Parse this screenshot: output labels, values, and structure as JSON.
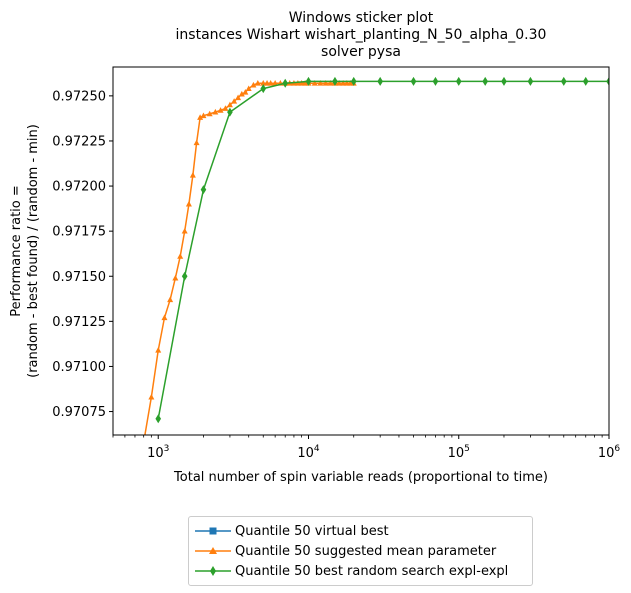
{
  "chart_data": {
    "type": "line",
    "title": [
      "Windows sticker plot",
      "instances Wishart wishart_planting_N_50_alpha_0.30",
      "solver pysa"
    ],
    "xlabel": "Total number of spin variable reads (proportional to time)",
    "ylabel": [
      "Performance ratio =",
      "(random - best found) / (random - min)"
    ],
    "xscale": "log",
    "xlim": [
      500,
      1000000
    ],
    "ylim": [
      0.97062,
      0.97266
    ],
    "x_ticks": [
      {
        "value": 1000,
        "base": "10",
        "exp": "3"
      },
      {
        "value": 10000,
        "base": "10",
        "exp": "4"
      },
      {
        "value": 100000,
        "base": "10",
        "exp": "5"
      },
      {
        "value": 1000000,
        "base": "10",
        "exp": "6"
      }
    ],
    "y_ticks": [
      0.97075,
      0.971,
      0.97125,
      0.9715,
      0.97175,
      0.972,
      0.97225,
      0.9725
    ],
    "y_tick_labels": [
      "0.97075",
      "0.97100",
      "0.97125",
      "0.97150",
      "0.97175",
      "0.97200",
      "0.97225",
      "0.97250"
    ],
    "grid": false,
    "legend_position": "below",
    "series": [
      {
        "name": "Quantile 50 virtual best",
        "color": "#1f77b4",
        "marker": "square",
        "x": [],
        "y": []
      },
      {
        "name": "Quantile 50 suggested mean parameter",
        "color": "#ff7f0e",
        "marker": "triangle",
        "x": [
          800,
          900,
          1000,
          1100,
          1200,
          1300,
          1400,
          1500,
          1600,
          1700,
          1800,
          1900,
          2000,
          2200,
          2400,
          2600,
          2800,
          3000,
          3200,
          3400,
          3600,
          3800,
          4000,
          4300,
          4600,
          5000,
          5300,
          5600,
          6000,
          6500,
          7000,
          7500,
          8000,
          8500,
          9000,
          9500,
          10000,
          11000,
          12000,
          13000,
          14000,
          15000,
          16000,
          17000,
          18000,
          19000,
          20000
        ],
        "y": [
          0.97058,
          0.97083,
          0.97109,
          0.97127,
          0.97137,
          0.97149,
          0.97161,
          0.97175,
          0.9719,
          0.97206,
          0.97224,
          0.97238,
          0.97239,
          0.9724,
          0.97241,
          0.97242,
          0.97243,
          0.97245,
          0.97247,
          0.97249,
          0.97251,
          0.97252,
          0.97254,
          0.97256,
          0.97257,
          0.97257,
          0.97257,
          0.97257,
          0.97257,
          0.97257,
          0.97257,
          0.97257,
          0.97257,
          0.97257,
          0.97257,
          0.97257,
          0.97257,
          0.97257,
          0.97257,
          0.97257,
          0.97257,
          0.97257,
          0.97257,
          0.97257,
          0.97257,
          0.97257,
          0.97257
        ]
      },
      {
        "name": "Quantile 50  best random search expl-expl",
        "color": "#2ca02c",
        "marker": "diamond",
        "x": [
          1000,
          1500,
          2000,
          3000,
          5000,
          7000,
          10000,
          15000,
          20000,
          30000,
          50000,
          70000,
          100000,
          150000,
          200000,
          300000,
          500000,
          700000,
          1000000
        ],
        "y": [
          0.97071,
          0.9715,
          0.97198,
          0.97241,
          0.97254,
          0.97257,
          0.97258,
          0.97258,
          0.97258,
          0.97258,
          0.97258,
          0.97258,
          0.97258,
          0.97258,
          0.97258,
          0.97258,
          0.97258,
          0.97258,
          0.97258
        ]
      }
    ]
  }
}
